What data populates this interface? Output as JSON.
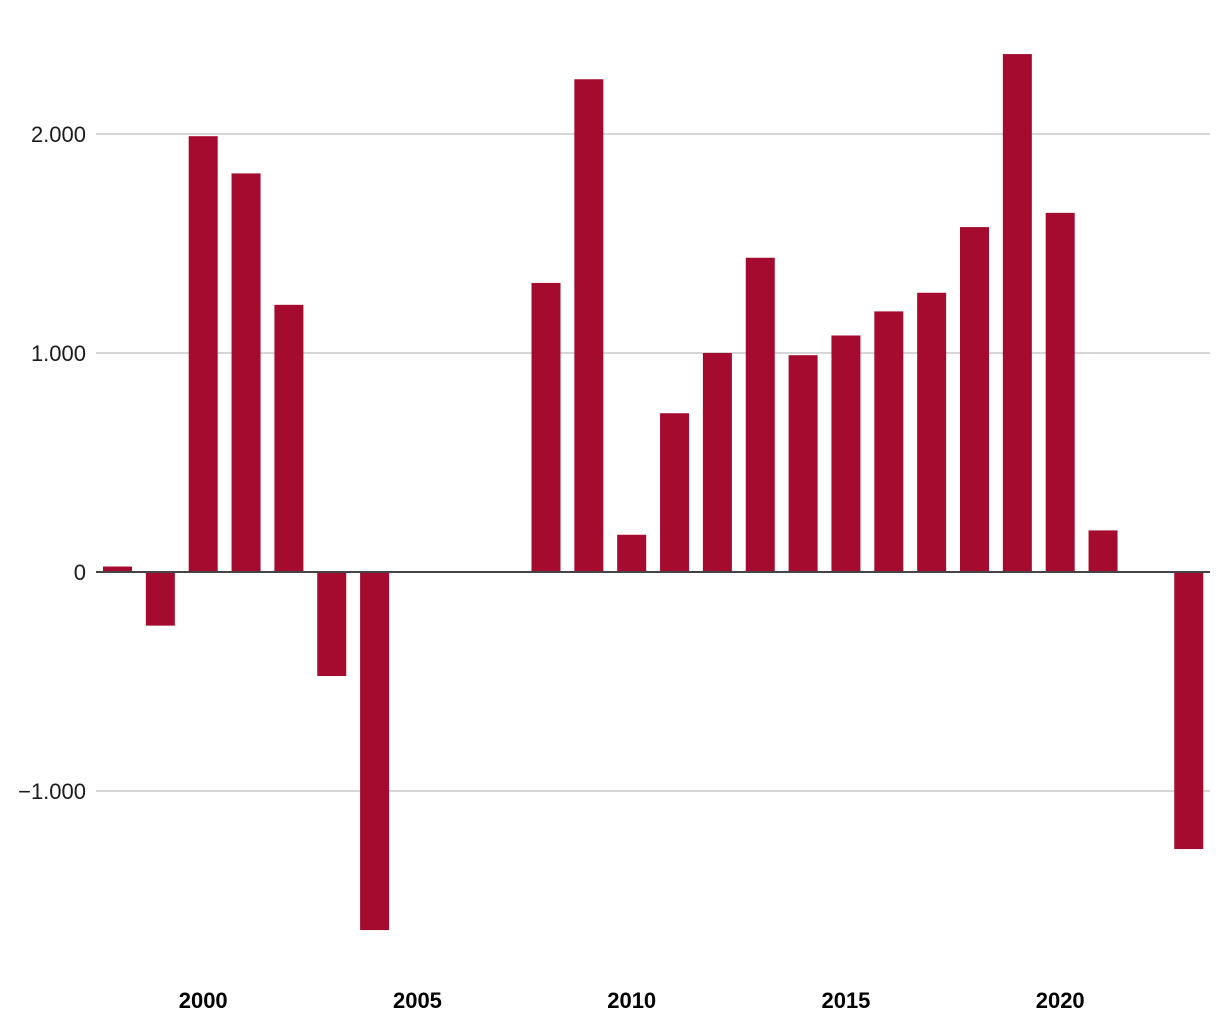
{
  "chart_data": {
    "type": "bar",
    "x": [
      1998,
      1999,
      2000,
      2001,
      2002,
      2003,
      2004,
      2005,
      2006,
      2007,
      2008,
      2009,
      2010,
      2011,
      2012,
      2013,
      2014,
      2015,
      2016,
      2017,
      2018,
      2019,
      2020,
      2021,
      2022,
      2023
    ],
    "values": [
      25,
      -245,
      1990,
      1820,
      1220,
      -475,
      -1635,
      0,
      0,
      0,
      1320,
      2250,
      170,
      725,
      1000,
      1435,
      990,
      1080,
      1190,
      1275,
      1575,
      2365,
      1640,
      190,
      0,
      -1265
    ],
    "color": "#a50b2e",
    "ylim": [
      -1800,
      2550
    ],
    "yticks": [
      {
        "value": -1000,
        "label": "−1.000"
      },
      {
        "value": 0,
        "label": "0"
      },
      {
        "value": 1000,
        "label": "1.000"
      },
      {
        "value": 2000,
        "label": "2.000"
      }
    ],
    "xticks": [
      {
        "value": 2000,
        "label": "2000"
      },
      {
        "value": 2005,
        "label": "2005"
      },
      {
        "value": 2010,
        "label": "2010"
      },
      {
        "value": 2015,
        "label": "2015"
      },
      {
        "value": 2020,
        "label": "2020"
      }
    ],
    "grid": true,
    "legend": "none",
    "title": "",
    "xlabel": "",
    "ylabel": ""
  }
}
